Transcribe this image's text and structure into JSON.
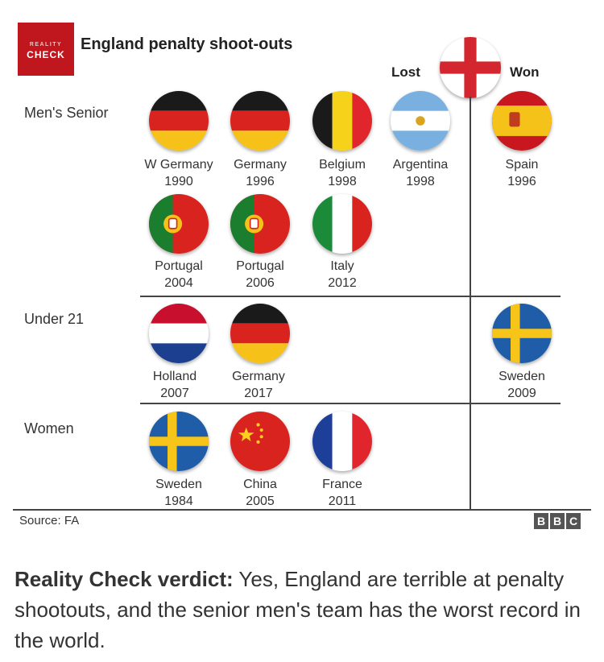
{
  "logo": {
    "line1": "REALITY",
    "line2": "CHECK"
  },
  "title": "England penalty shoot-outs",
  "columns": {
    "lost": "Lost",
    "won": "Won"
  },
  "rows": {
    "mens": "Men's Senior",
    "u21": "Under 21",
    "women": "Women"
  },
  "flags": [
    {
      "id": "wgermany1990",
      "country": "W Germany",
      "year": "1990",
      "flag": "germany-flag-icon"
    },
    {
      "id": "germany1996",
      "country": "Germany",
      "year": "1996",
      "flag": "germany-flag-icon"
    },
    {
      "id": "belgium1998",
      "country": "Belgium",
      "year": "1998",
      "flag": "belgium-flag-icon"
    },
    {
      "id": "argentina1998",
      "country": "Argentina",
      "year": "1998",
      "flag": "argentina-flag-icon"
    },
    {
      "id": "spain1996",
      "country": "Spain",
      "year": "1996",
      "flag": "spain-flag-icon"
    },
    {
      "id": "portugal2004",
      "country": "Portugal",
      "year": "2004",
      "flag": "portugal-flag-icon"
    },
    {
      "id": "portugal2006",
      "country": "Portugal",
      "year": "2006",
      "flag": "portugal-flag-icon"
    },
    {
      "id": "italy2012",
      "country": "Italy",
      "year": "2012",
      "flag": "italy-flag-icon"
    },
    {
      "id": "holland2007",
      "country": "Holland",
      "year": "2007",
      "flag": "netherlands-flag-icon"
    },
    {
      "id": "germany2017",
      "country": "Germany",
      "year": "2017",
      "flag": "germany-flag-icon"
    },
    {
      "id": "sweden2009",
      "country": "Sweden",
      "year": "2009",
      "flag": "sweden-flag-icon"
    },
    {
      "id": "sweden1984",
      "country": "Sweden",
      "year": "1984",
      "flag": "sweden-flag-icon"
    },
    {
      "id": "china2005",
      "country": "China",
      "year": "2005",
      "flag": "china-flag-icon"
    },
    {
      "id": "france2011",
      "country": "France",
      "year": "2011",
      "flag": "france-flag-icon"
    }
  ],
  "source": "Source: FA",
  "bbc": [
    "B",
    "B",
    "C"
  ],
  "verdict": {
    "bold": "Reality Check verdict:",
    "text": " Yes, England are terrible at penalty shootouts, and the senior men's team has the worst record in the world."
  }
}
